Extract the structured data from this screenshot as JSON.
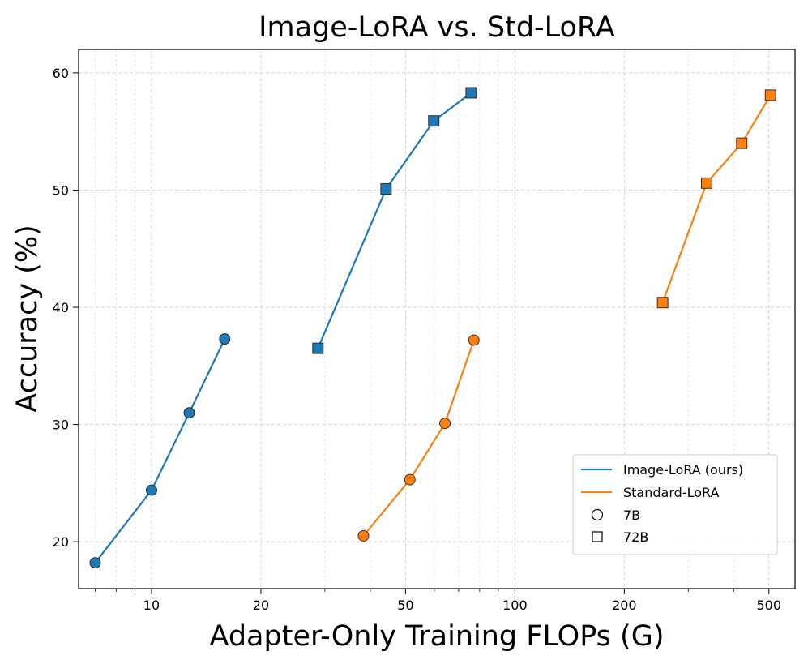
{
  "chart_data": {
    "type": "line",
    "title": "Image-LoRA vs. Std-LoRA",
    "xlabel": "Adapter-Only Training FLOPs (G)",
    "ylabel": "Accuracy (%)",
    "xscale": "log",
    "xlim": [
      6.3,
      590
    ],
    "ylim": [
      16.0,
      62.0
    ],
    "xticks": [
      10,
      20,
      50,
      100,
      200,
      500
    ],
    "xtick_labels": [
      "10",
      "20",
      "50",
      "100",
      "200",
      "500"
    ],
    "yticks": [
      20,
      30,
      40,
      50,
      60
    ],
    "ytick_labels": [
      "20",
      "30",
      "40",
      "50",
      "60"
    ],
    "grid": true,
    "legend_position": "lower-right",
    "legend": [
      {
        "label": "Image-LoRA (ours)",
        "kind": "line",
        "color": "#1f77b4"
      },
      {
        "label": "Standard-LoRA",
        "kind": "line",
        "color": "#ff7f0e"
      },
      {
        "label": "7B",
        "kind": "marker",
        "marker": "circle"
      },
      {
        "label": "72B",
        "kind": "marker",
        "marker": "square"
      }
    ],
    "series": [
      {
        "name": "Image-LoRA 7B",
        "color": "#1f77b4",
        "marker": "circle",
        "x": [
          7.0,
          10.0,
          12.7,
          15.9
        ],
        "y": [
          18.2,
          24.4,
          31.0,
          37.3
        ]
      },
      {
        "name": "Image-LoRA 72B",
        "color": "#1f77b4",
        "marker": "square",
        "x": [
          28.7,
          44.2,
          59.8,
          75.8
        ],
        "y": [
          36.5,
          50.1,
          55.9,
          58.3
        ]
      },
      {
        "name": "Standard-LoRA 7B",
        "color": "#ff7f0e",
        "marker": "circle",
        "x": [
          38.3,
          51.4,
          64.2,
          77.1
        ],
        "y": [
          20.5,
          25.3,
          30.1,
          37.2
        ]
      },
      {
        "name": "Standard-LoRA 72B",
        "color": "#ff7f0e",
        "marker": "square",
        "x": [
          255,
          337,
          421,
          505
        ],
        "y": [
          40.4,
          50.6,
          54.0,
          58.1
        ]
      }
    ]
  }
}
